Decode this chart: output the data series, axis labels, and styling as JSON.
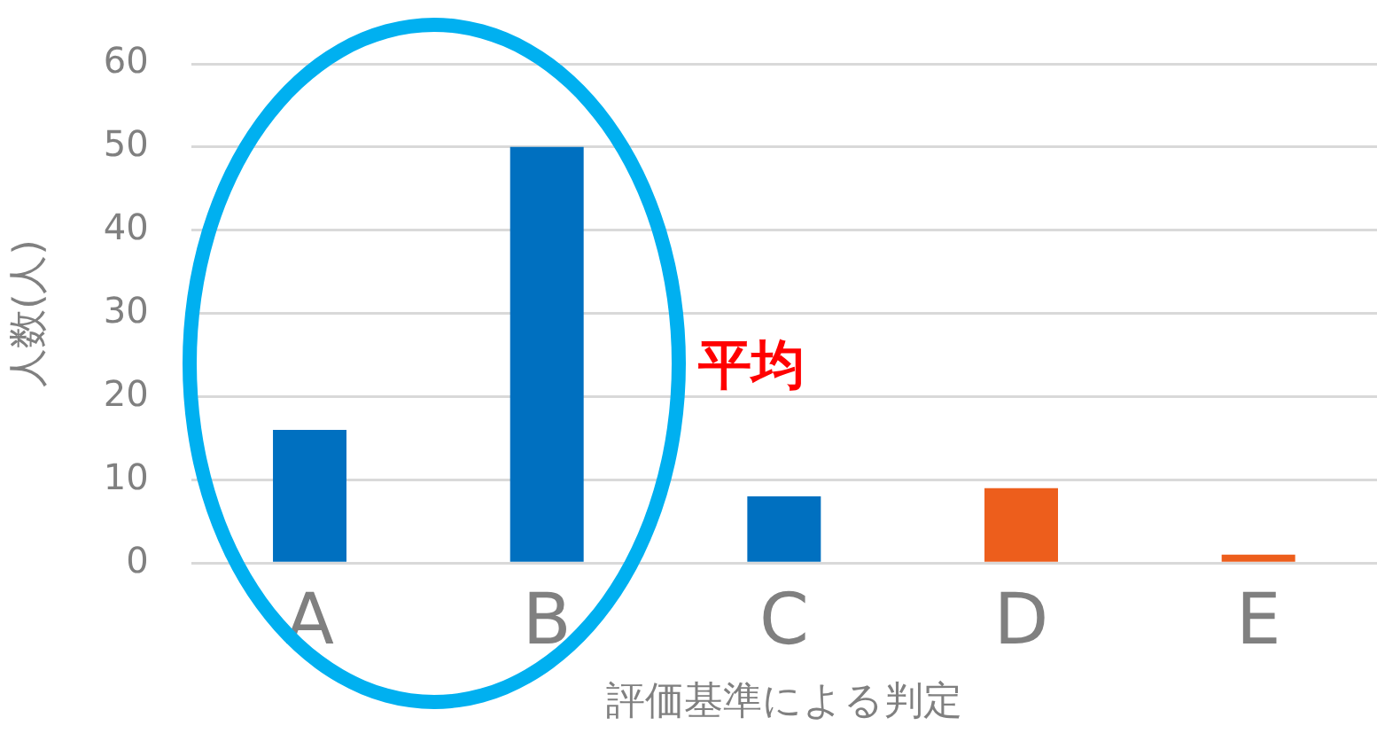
{
  "chart_data": {
    "type": "bar",
    "xlabel": "評価基準による判定",
    "ylabel": "人数(人)",
    "categories": [
      "A",
      "B",
      "C",
      "D",
      "E"
    ],
    "values": [
      16,
      50,
      8,
      9,
      1
    ],
    "colors": [
      "#0070c0",
      "#0070c0",
      "#0070c0",
      "#ed5e1c",
      "#ed5e1c"
    ],
    "ylim": [
      0,
      60
    ],
    "yticks": [
      0,
      10,
      20,
      30,
      40,
      50,
      60
    ],
    "grid": "y",
    "legend": false,
    "annotations": [
      "平均"
    ]
  }
}
